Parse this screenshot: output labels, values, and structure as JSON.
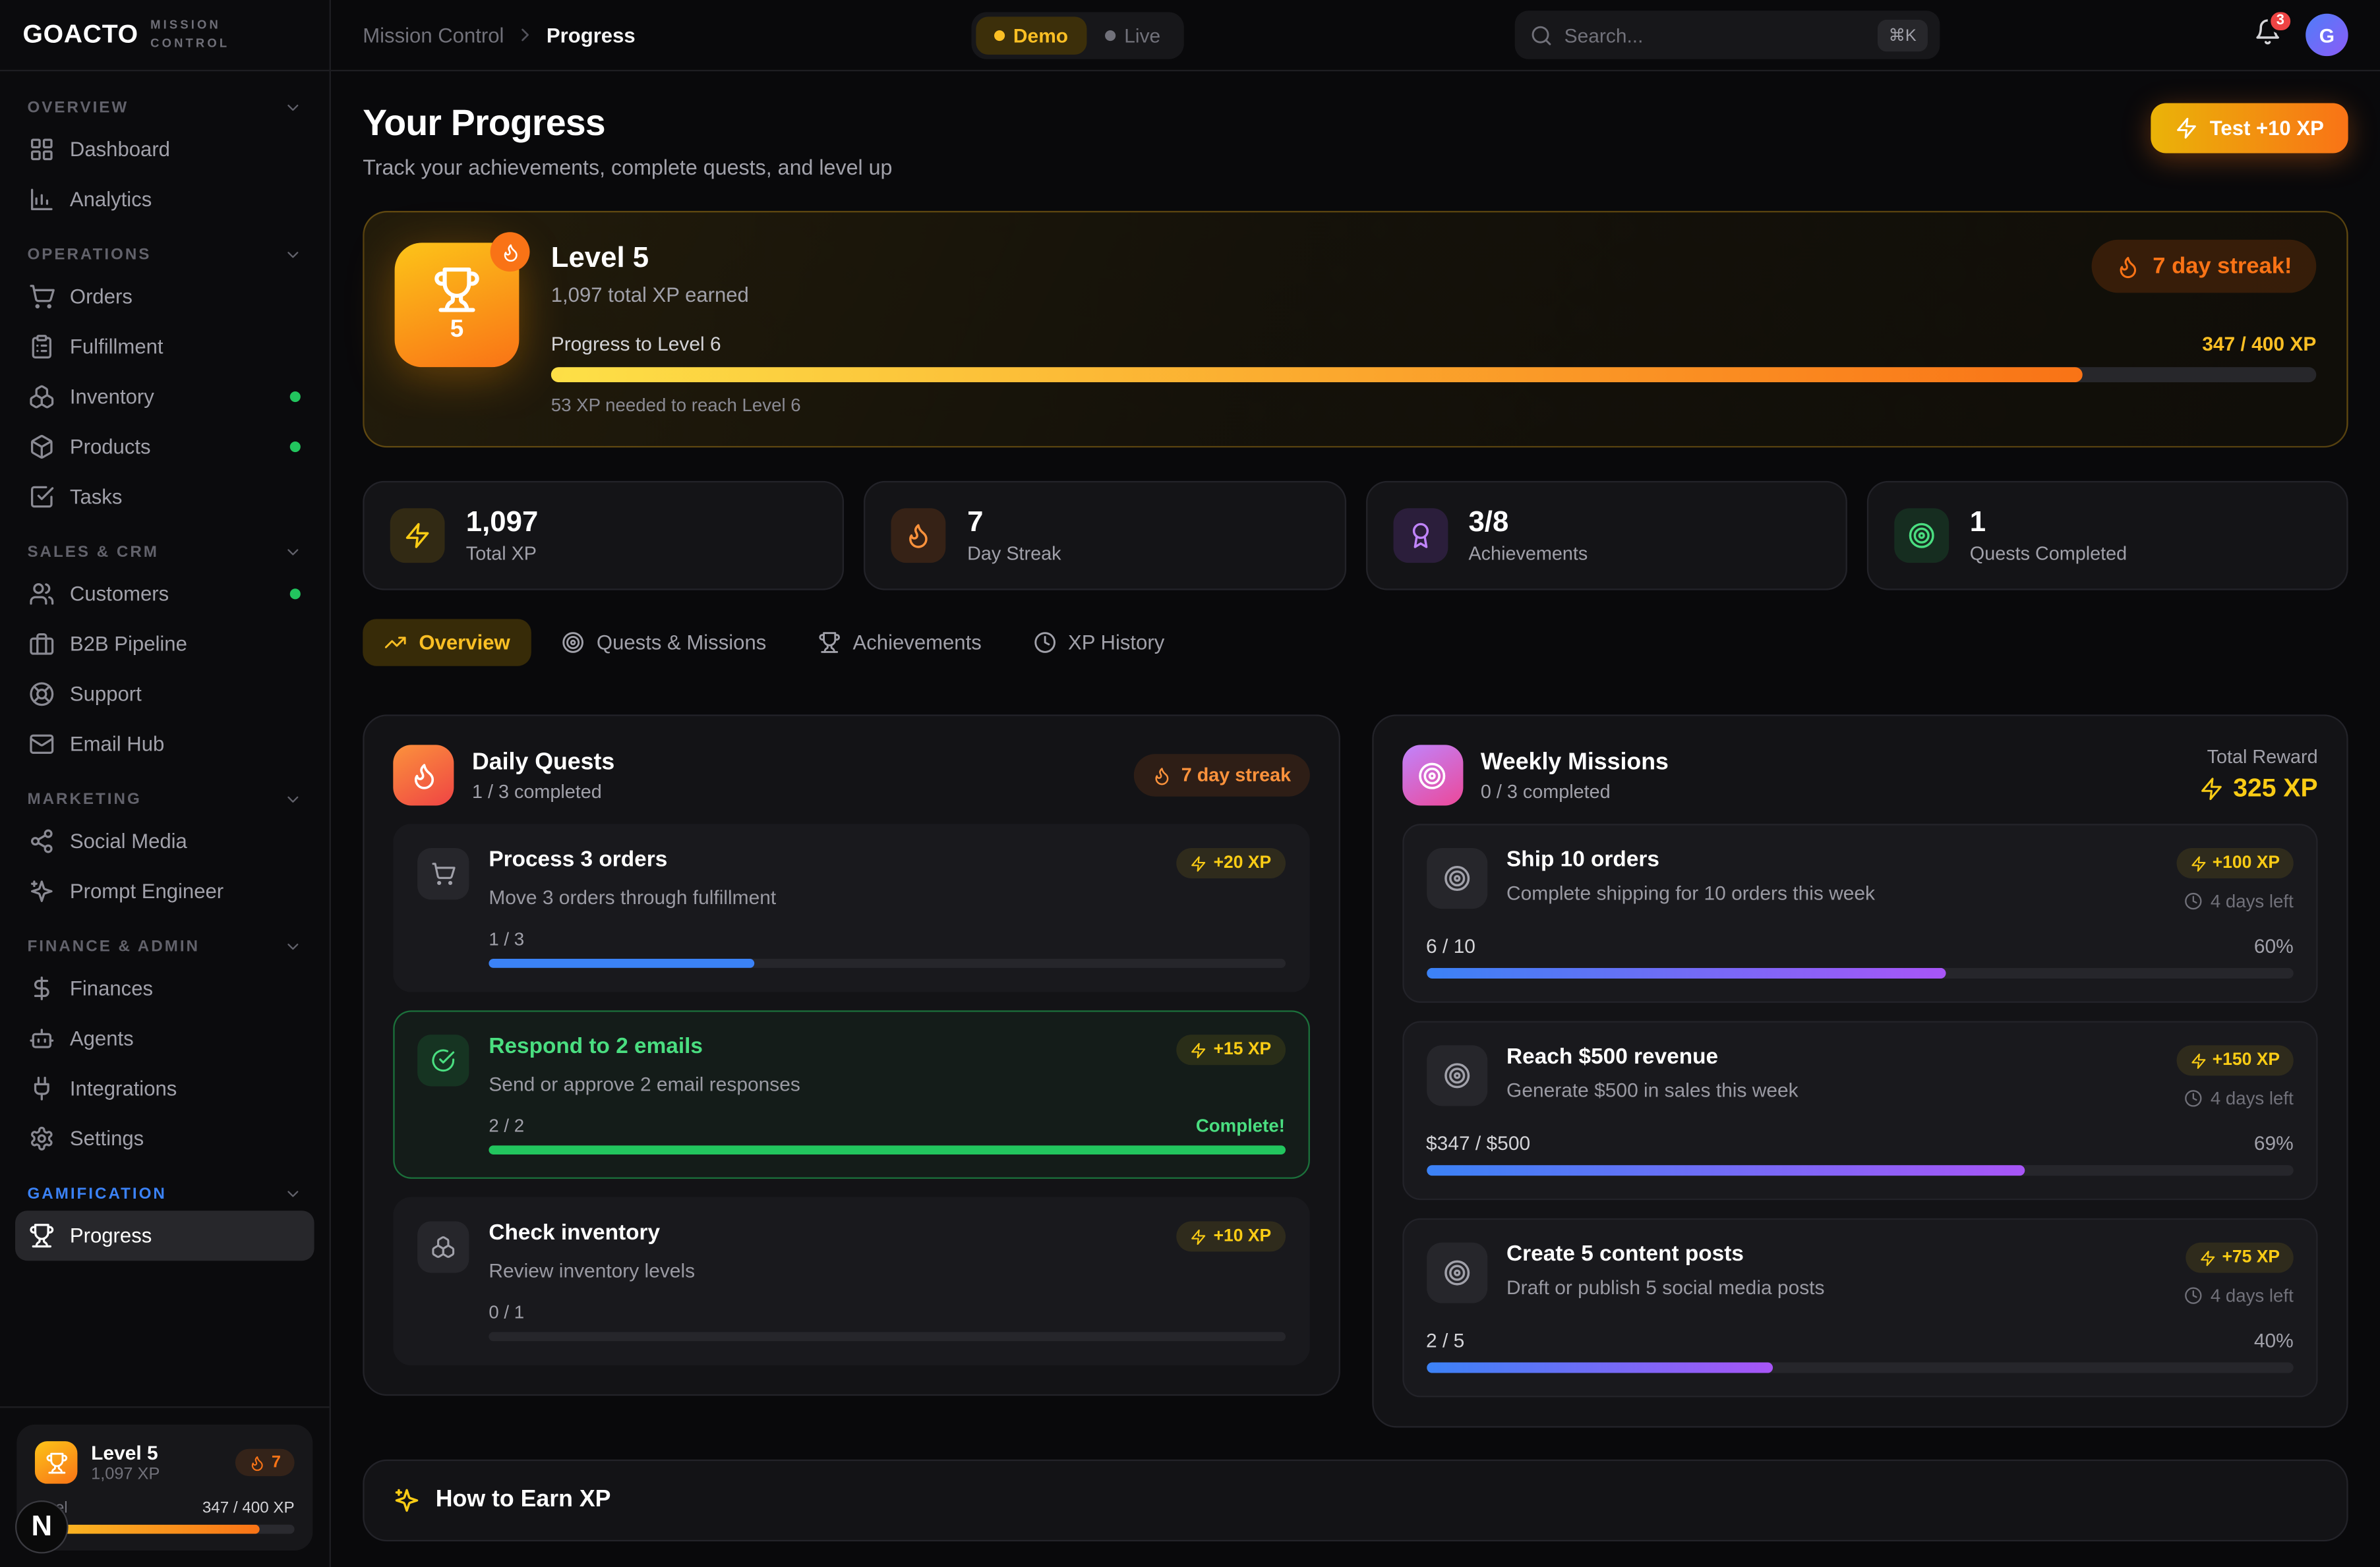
{
  "colors": {
    "accent": "#fbbf24",
    "orange": "#f97316",
    "green": "#22c55e",
    "blue": "#3b82f6",
    "purple": "#a855f7",
    "red": "#ef4444"
  },
  "brand": {
    "name": "GOACTO",
    "tagline": "MISSION CONTROL"
  },
  "topbar": {
    "breadcrumb_root": "Mission Control",
    "breadcrumb_current": "Progress",
    "demo_label": "Demo",
    "live_label": "Live",
    "search_placeholder": "Search...",
    "shortcut": "⌘K",
    "notification_count": "3",
    "avatar_initial": "G"
  },
  "sidebar": {
    "sections": [
      {
        "label": "OVERVIEW",
        "items": [
          {
            "label": "Dashboard"
          },
          {
            "label": "Analytics"
          }
        ]
      },
      {
        "label": "OPERATIONS",
        "items": [
          {
            "label": "Orders"
          },
          {
            "label": "Fulfillment"
          },
          {
            "label": "Inventory"
          },
          {
            "label": "Products"
          },
          {
            "label": "Tasks"
          }
        ]
      },
      {
        "label": "SALES & CRM",
        "items": [
          {
            "label": "Customers"
          },
          {
            "label": "B2B Pipeline"
          },
          {
            "label": "Support"
          },
          {
            "label": "Email Hub"
          }
        ]
      },
      {
        "label": "MARKETING",
        "items": [
          {
            "label": "Social Media"
          },
          {
            "label": "Prompt Engineer"
          }
        ]
      },
      {
        "label": "FINANCE & ADMIN",
        "items": [
          {
            "label": "Finances"
          },
          {
            "label": "Agents"
          },
          {
            "label": "Integrations"
          },
          {
            "label": "Settings"
          }
        ]
      },
      {
        "label": "GAMIFICATION",
        "items": [
          {
            "label": "Progress"
          }
        ]
      }
    ],
    "level_card": {
      "title": "Level 5",
      "xp": "1,097 XP",
      "streak": "7",
      "next_label": "level",
      "progress_value": "347 / 400 XP",
      "pct": 86.75,
      "badge": "N"
    }
  },
  "header": {
    "title": "Your Progress",
    "subtitle": "Track your achievements, complete quests, and level up",
    "test_button": "Test +10 XP"
  },
  "level_banner": {
    "level_number": "5",
    "title": "Level 5",
    "subtitle": "1,097 total XP earned",
    "streak_badge": "7 day streak!",
    "progress_label": "Progress to Level 6",
    "progress_value": "347 / 400 XP",
    "pct": 86.75,
    "caption": "53 XP needed to reach Level 6"
  },
  "stats": [
    {
      "value": "1,097",
      "label": "Total XP"
    },
    {
      "value": "7",
      "label": "Day Streak"
    },
    {
      "value": "3/8",
      "label": "Achievements"
    },
    {
      "value": "1",
      "label": "Quests Completed"
    }
  ],
  "tabs": [
    {
      "label": "Overview"
    },
    {
      "label": "Quests & Missions"
    },
    {
      "label": "Achievements"
    },
    {
      "label": "XP History"
    }
  ],
  "daily": {
    "title": "Daily Quests",
    "completed": "1 / 3 completed",
    "streak_badge": "7 day streak",
    "quests": [
      {
        "title": "Process 3 orders",
        "desc": "Move 3 orders through fulfillment",
        "xp": "+20 XP",
        "progress": "1 / 3",
        "pct": 33.3
      },
      {
        "title": "Respond to 2 emails",
        "desc": "Send or approve 2 email responses",
        "xp": "+15 XP",
        "progress": "2 / 2",
        "pct": 100,
        "complete_label": "Complete!"
      },
      {
        "title": "Check inventory",
        "desc": "Review inventory levels",
        "xp": "+10 XP",
        "progress": "0 / 1",
        "pct": 0
      }
    ]
  },
  "weekly": {
    "title": "Weekly Missions",
    "completed": "0 / 3 completed",
    "total_reward_label": "Total Reward",
    "total_reward": "325 XP",
    "missions": [
      {
        "title": "Ship 10 orders",
        "desc": "Complete shipping for 10 orders this week",
        "xp": "+100 XP",
        "time_left": "4 days left",
        "progress": "6 / 10",
        "pct_label": "60%",
        "pct": 60
      },
      {
        "title": "Reach $500 revenue",
        "desc": "Generate $500 in sales this week",
        "xp": "+150 XP",
        "time_left": "4 days left",
        "progress": "$347 / $500",
        "pct_label": "69%",
        "pct": 69
      },
      {
        "title": "Create 5 content posts",
        "desc": "Draft or publish 5 social media posts",
        "xp": "+75 XP",
        "time_left": "4 days left",
        "progress": "2 / 5",
        "pct_label": "40%",
        "pct": 40
      }
    ]
  },
  "footer": {
    "title": "How to Earn XP"
  }
}
